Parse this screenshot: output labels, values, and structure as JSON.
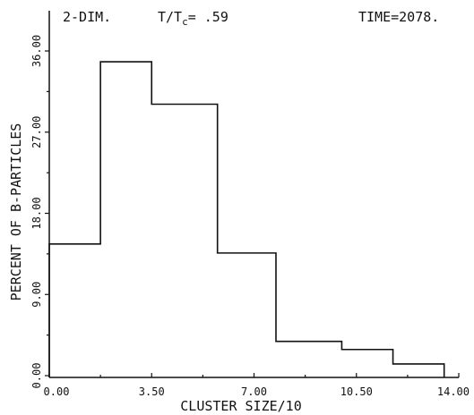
{
  "chart_data": {
    "type": "bar",
    "header": {
      "left": "2-DIM.",
      "middle_prefix": "T/T",
      "middle_sub": "c",
      "middle_value": "= .59",
      "right": "TIME=2078."
    },
    "xlabel": "CLUSTER SIZE/10",
    "ylabel": "PERCENT OF B-PARTICLES",
    "x_ticks": [
      "0.00",
      "3.50",
      "7.00",
      "10.50",
      "14.00"
    ],
    "x_tick_values": [
      0,
      3.5,
      7,
      10.5,
      14
    ],
    "y_ticks": [
      "0.00",
      "9.00",
      "18.00",
      "27.00",
      "36.00"
    ],
    "y_tick_values": [
      0,
      9,
      18,
      27,
      36
    ],
    "xlim": [
      0,
      14
    ],
    "ylim": [
      0,
      36
    ],
    "grid": false,
    "bins": [
      {
        "x0": 0.0,
        "x1": 1.75,
        "value": 14.6
      },
      {
        "x0": 1.75,
        "x1": 3.5,
        "value": 34.8
      },
      {
        "x0": 3.5,
        "x1": 5.75,
        "value": 30.1
      },
      {
        "x0": 5.75,
        "x1": 7.75,
        "value": 13.6
      },
      {
        "x0": 7.75,
        "x1": 10.0,
        "value": 3.8
      },
      {
        "x0": 10.0,
        "x1": 11.75,
        "value": 2.9
      },
      {
        "x0": 11.75,
        "x1": 13.5,
        "value": 1.3
      }
    ]
  }
}
